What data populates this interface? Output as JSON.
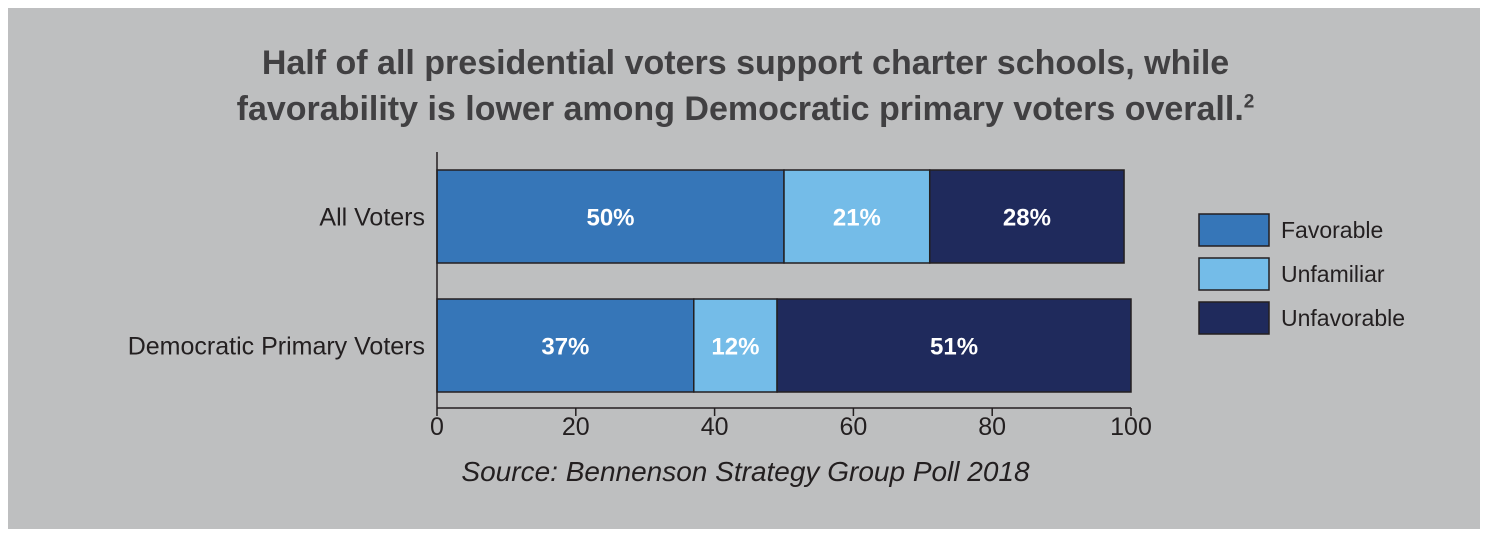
{
  "title": {
    "line1": "Half of all presidential voters support charter schools, while",
    "line2": "favorability is lower among Democratic primary voters overall.",
    "footnote": "2"
  },
  "source": "Source: Bennenson Strategy Group Poll 2018",
  "chart_data": {
    "type": "bar",
    "orientation": "horizontal",
    "stacked": true,
    "categories": [
      "All Voters",
      "Democratic Primary Voters"
    ],
    "series": [
      {
        "name": "Favorable",
        "values": [
          50,
          37
        ],
        "labels": [
          "50%",
          "37%"
        ],
        "color": "#3676b8"
      },
      {
        "name": "Unfamiliar",
        "values": [
          21,
          12
        ],
        "labels": [
          "21%",
          "12%"
        ],
        "color": "#74bce8"
      },
      {
        "name": "Unfavorable",
        "values": [
          28,
          51
        ],
        "labels": [
          "28%",
          "51%"
        ],
        "color": "#1f2a5c"
      }
    ],
    "xlim": [
      0,
      100
    ],
    "xticks": [
      0,
      20,
      40,
      60,
      80,
      100
    ],
    "grid": false,
    "legend": "right"
  }
}
